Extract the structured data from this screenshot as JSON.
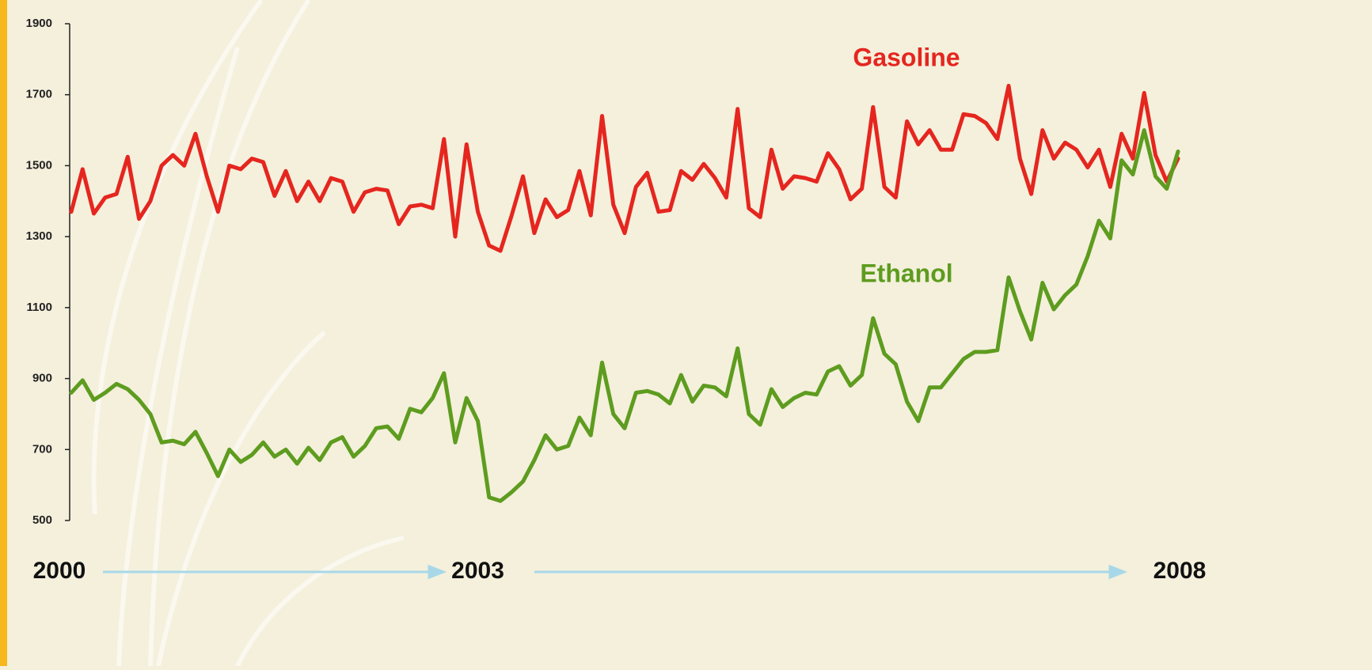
{
  "chart_data": {
    "type": "line",
    "categories": [
      "2000",
      null,
      null,
      null,
      null,
      null,
      null,
      null,
      null,
      null,
      null,
      null,
      null,
      null,
      null,
      null,
      null,
      null,
      null,
      null,
      null,
      null,
      null,
      null,
      null,
      null,
      null,
      null,
      null,
      null,
      null,
      null,
      null,
      null,
      null,
      null,
      "2003",
      null,
      null,
      null,
      null,
      null,
      null,
      null,
      null,
      null,
      null,
      null,
      null,
      null,
      null,
      null,
      null,
      null,
      null,
      null,
      null,
      null,
      null,
      null,
      null,
      null,
      null,
      null,
      null,
      null,
      null,
      null,
      null,
      null,
      null,
      null,
      null,
      null,
      null,
      null,
      null,
      null,
      null,
      null,
      null,
      null,
      null,
      null,
      null,
      null,
      null,
      null,
      null,
      null,
      null,
      null,
      null,
      null,
      null,
      null,
      null,
      null,
      "2008"
    ],
    "series": [
      {
        "name": "Gasoline",
        "color": "#e5261f",
        "values": [
          1370,
          1490,
          1365,
          1410,
          1420,
          1525,
          1350,
          1400,
          1500,
          1530,
          1500,
          1590,
          1470,
          1370,
          1500,
          1490,
          1520,
          1510,
          1415,
          1485,
          1400,
          1455,
          1400,
          1465,
          1455,
          1370,
          1425,
          1435,
          1430,
          1335,
          1385,
          1390,
          1380,
          1575,
          1300,
          1560,
          1370,
          1275,
          1260,
          1360,
          1470,
          1310,
          1405,
          1355,
          1375,
          1485,
          1360,
          1640,
          1390,
          1310,
          1440,
          1480,
          1370,
          1375,
          1485,
          1460,
          1505,
          1465,
          1410,
          1660,
          1380,
          1355,
          1545,
          1435,
          1470,
          1465,
          1455,
          1535,
          1490,
          1405,
          1435,
          1665,
          1440,
          1410,
          1625,
          1560,
          1600,
          1545,
          1545,
          1645,
          1640,
          1620,
          1575,
          1725,
          1520,
          1420,
          1600,
          1520,
          1565,
          1545,
          1495,
          1545,
          1440,
          1590,
          1520,
          1705,
          1530,
          1455,
          1520
        ]
      },
      {
        "name": "Ethanol",
        "color": "#5e9c1f",
        "values": [
          860,
          895,
          840,
          860,
          885,
          870,
          840,
          800,
          720,
          725,
          715,
          750,
          690,
          625,
          700,
          665,
          685,
          720,
          680,
          700,
          660,
          705,
          670,
          720,
          735,
          680,
          710,
          760,
          765,
          730,
          815,
          805,
          845,
          915,
          720,
          845,
          780,
          565,
          555,
          580,
          610,
          670,
          740,
          700,
          710,
          790,
          740,
          945,
          800,
          760,
          860,
          865,
          855,
          830,
          910,
          835,
          880,
          875,
          850,
          985,
          800,
          770,
          870,
          820,
          845,
          860,
          855,
          920,
          935,
          880,
          910,
          1070,
          970,
          940,
          835,
          780,
          875,
          875,
          915,
          955,
          975,
          975,
          980,
          1185,
          1090,
          1010,
          1170,
          1095,
          1135,
          1165,
          1245,
          1345,
          1295,
          1515,
          1475,
          1600,
          1470,
          1435,
          1540
        ]
      }
    ],
    "ylim": [
      500,
      1900
    ],
    "yticks": [
      500,
      700,
      900,
      1100,
      1300,
      1500,
      1700,
      1900
    ],
    "grid": false
  }
}
